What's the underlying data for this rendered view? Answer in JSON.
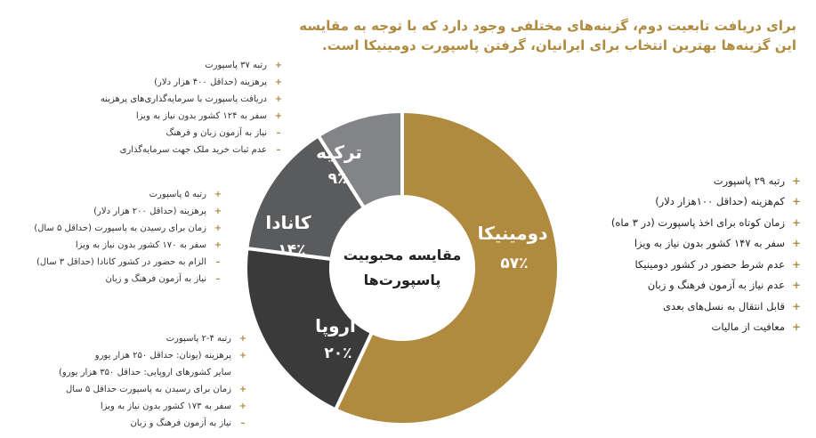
{
  "intro": {
    "line1": "برای دریافت تابعیت دوم، گزینه‌های مختلفی وجود دارد که با توجه به مقایسه",
    "line2": "این گزینه‌ها بهترین انتخاب برای ایرانیان، گرفتن پاسپورت دومینیکا است."
  },
  "center_title": {
    "line1": "مقایسه محبوبیت",
    "line2": "پاسپورت‌ها"
  },
  "colors": {
    "gold": "#b08a3e",
    "dark": "#3a3a3a",
    "gray": "#5a5b5d",
    "light_gray": "#838487"
  },
  "chart_data": {
    "type": "pie",
    "donut": true,
    "title": "مقایسه محبوبیت پاسپورت‌ها",
    "series": [
      {
        "name": "دومینیکا",
        "value": 57,
        "label": "۵۷٪",
        "color": "#b08a3e"
      },
      {
        "name": "اروپا",
        "value": 20,
        "label": "۲۰٪",
        "color": "#3a3a3a"
      },
      {
        "name": "کانادا",
        "value": 14,
        "label": "۱۴٪",
        "color": "#5a5b5d"
      },
      {
        "name": "ترکیه",
        "value": 9,
        "label": "۹٪",
        "color": "#838487"
      }
    ]
  },
  "lists": {
    "turkey": [
      {
        "type": "pro",
        "text": "رتبه ۳۷ پاسپورت"
      },
      {
        "type": "pro",
        "text": "پرهزینه (حداقل ۴۰۰ هزار دلار)"
      },
      {
        "type": "pro",
        "text": "دریافت پاسپورت با سرمایه‌گذاری‌های پرهزینه"
      },
      {
        "type": "pro",
        "text": "سفر به ۱۲۴ کشور بدون نیاز به ویزا"
      },
      {
        "type": "con",
        "text": "نیاز به آزمون زبان و فرهنگ"
      },
      {
        "type": "con",
        "text": "عدم ثبات خرید ملک جهت سرمایه‌گذاری"
      }
    ],
    "canada": [
      {
        "type": "pro",
        "text": "رتبه ۵ پاسپورت"
      },
      {
        "type": "pro",
        "text": "پرهزینه (حداقل ۲۰۰ هزار دلار)"
      },
      {
        "type": "pro",
        "text": "زمان برای رسیدن به پاسپورت (حداقل ۵ سال)"
      },
      {
        "type": "pro",
        "text": "سفر به ۱۷۰ کشور بدون نیاز به ویزا"
      },
      {
        "type": "con",
        "text": "الزام به حضور در کشور کانادا (حداقل ۳ سال)"
      },
      {
        "type": "con",
        "text": "نیاز به آزمون فرهنگ و زبان"
      }
    ],
    "europe": [
      {
        "type": "pro",
        "text": "رتبه ۴-۲ پاسپورت"
      },
      {
        "type": "pro",
        "text": "پرهزینه (یونان: حداقل ۲۵۰ هزار یورو"
      },
      {
        "type": "none",
        "text": "سایر کشورهای اروپایی: حداقل ۳۵۰ هزار یورو)"
      },
      {
        "type": "pro",
        "text": "زمان برای رسیدن به پاسپورت حداقل ۵ سال"
      },
      {
        "type": "pro",
        "text": "سفر به ۱۷۳ کشور بدون نیاز به ویزا"
      },
      {
        "type": "con",
        "text": "نیاز به آزمون فرهنگ و زبان"
      }
    ],
    "dominica": [
      {
        "type": "pro",
        "text": "رتبه ۲۹ پاسپورت"
      },
      {
        "type": "pro",
        "text": "کم‌هزینه (حداقل ۱۰۰هزار دلار)"
      },
      {
        "type": "pro",
        "text": "زمان کوتاه برای اخذ پاسپورت (در ۳ ماه)"
      },
      {
        "type": "pro",
        "text": "سفر به ۱۴۷ کشور بدون نیاز به ویزا"
      },
      {
        "type": "pro",
        "text": "عدم شرط حضور در کشور دومینیکا"
      },
      {
        "type": "pro",
        "text": "عدم نیاز به آزمون فرهنگ و زبان"
      },
      {
        "type": "pro",
        "text": "قابل انتقال به نسل‌های بعدی"
      },
      {
        "type": "pro",
        "text": "معافیت از مالیات"
      }
    ]
  }
}
